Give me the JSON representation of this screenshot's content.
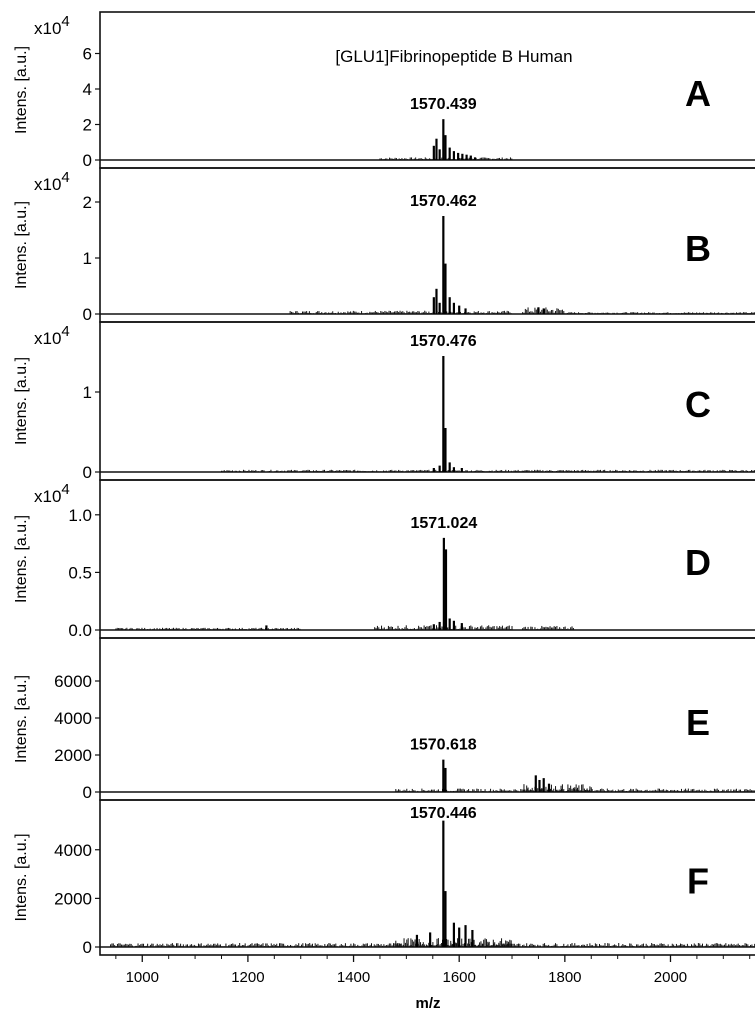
{
  "figure": {
    "title": "[GLU1]Fibrinopeptide B Human",
    "x_label": "m/z",
    "x_ticks": [
      "1000",
      "1200",
      "1400",
      "1600",
      "1800",
      "2000"
    ]
  },
  "chart_data": [
    {
      "type": "line",
      "panel": "A",
      "ylabel": "Intens. [a.u.]",
      "y_scale_label": "x10",
      "y_scale_exp": "4",
      "ylim": [
        0,
        8
      ],
      "y_ticks": [
        "0",
        "2",
        "4",
        "6"
      ],
      "peak_label": "1570.439",
      "xlim": [
        920,
        2160
      ],
      "x": [
        1552,
        1557,
        1563,
        1570,
        1574,
        1582,
        1590,
        1598,
        1606,
        1614,
        1622,
        1630
      ],
      "y": [
        0.8,
        1.2,
        0.6,
        2.3,
        1.4,
        0.7,
        0.5,
        0.4,
        0.35,
        0.3,
        0.25,
        0.15
      ]
    },
    {
      "type": "line",
      "panel": "B",
      "ylabel": "Intens. [a.u.]",
      "y_scale_label": "x10",
      "y_scale_exp": "4",
      "ylim": [
        0,
        2.5
      ],
      "y_ticks": [
        "0",
        "1",
        "2"
      ],
      "peak_label": "1570.462",
      "xlim": [
        920,
        2160
      ],
      "x": [
        1552,
        1557,
        1563,
        1570,
        1574,
        1582,
        1590,
        1600,
        1612,
        1750,
        1760
      ],
      "y": [
        0.3,
        0.45,
        0.2,
        1.75,
        0.9,
        0.3,
        0.2,
        0.15,
        0.1,
        0.12,
        0.1
      ]
    },
    {
      "type": "line",
      "panel": "C",
      "ylabel": "Intens. [a.u.]",
      "y_scale_label": "x10",
      "y_scale_exp": "4",
      "ylim": [
        0,
        1.8
      ],
      "y_ticks": [
        "0",
        "1"
      ],
      "peak_label": "1570.476",
      "xlim": [
        920,
        2160
      ],
      "x": [
        1552,
        1563,
        1570,
        1574,
        1582,
        1590,
        1605
      ],
      "y": [
        0.05,
        0.08,
        1.45,
        0.55,
        0.12,
        0.06,
        0.05
      ]
    },
    {
      "type": "line",
      "panel": "D",
      "ylabel": "Intens. [a.u.]",
      "y_scale_label": "x10",
      "y_scale_exp": "4",
      "ylim": [
        0,
        1.25
      ],
      "y_ticks": [
        "0.0",
        "0.5",
        "1.0"
      ],
      "peak_label": "1571.024",
      "xlim": [
        920,
        2160
      ],
      "x": [
        1552,
        1563,
        1571,
        1575,
        1582,
        1590,
        1605,
        1235
      ],
      "y": [
        0.05,
        0.07,
        0.8,
        0.7,
        0.1,
        0.08,
        0.06,
        0.04
      ]
    },
    {
      "type": "line",
      "panel": "E",
      "ylabel": "Intens. [a.u.]",
      "ylim": [
        0,
        8000
      ],
      "y_ticks": [
        "0",
        "2000",
        "4000",
        "6000"
      ],
      "peak_label": "1570.618",
      "xlim": [
        920,
        2160
      ],
      "x": [
        1570,
        1574,
        1745,
        1752,
        1760,
        1770
      ],
      "y": [
        1750,
        1300,
        900,
        650,
        750,
        450
      ]
    },
    {
      "type": "line",
      "panel": "F",
      "ylabel": "Intens. [a.u.]",
      "ylim": [
        0,
        5800
      ],
      "y_ticks": [
        "0",
        "2000",
        "4000"
      ],
      "peak_label": "1570.446",
      "xlim": [
        920,
        2160
      ],
      "x": [
        1570,
        1574,
        1590,
        1600,
        1612,
        1625,
        1545,
        1520
      ],
      "y": [
        5200,
        2300,
        1000,
        800,
        900,
        700,
        600,
        500
      ]
    }
  ]
}
